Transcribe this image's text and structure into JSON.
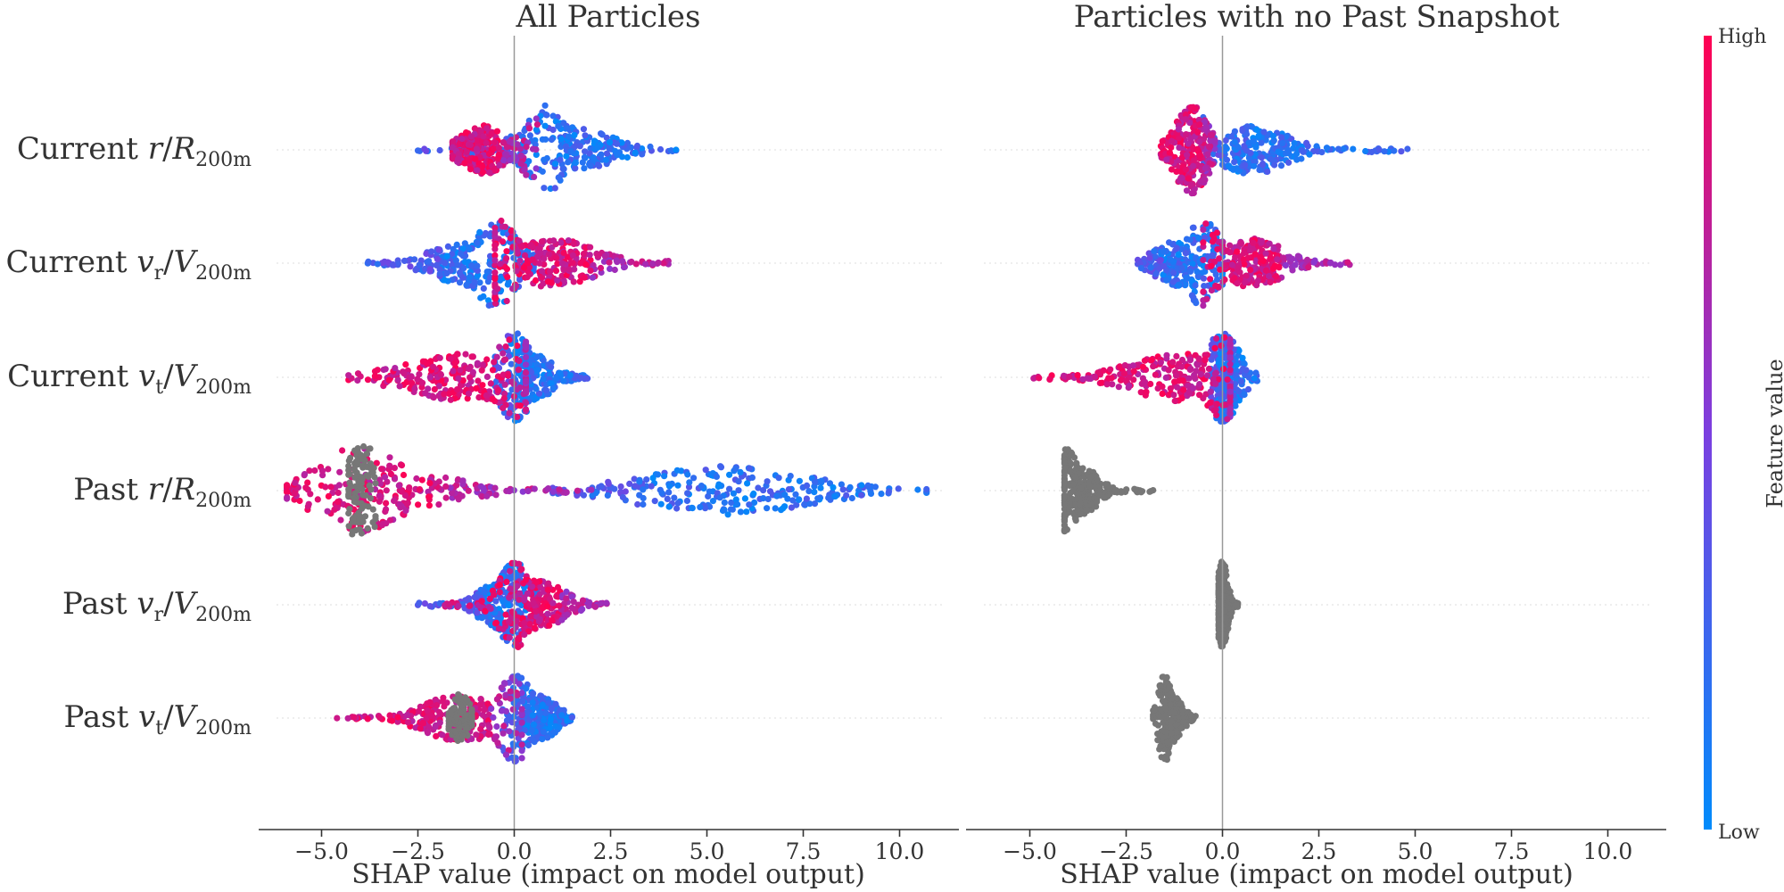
{
  "chart_data": [
    {
      "type": "scatter",
      "subtype": "shap-beeswarm",
      "title": "All Particles",
      "xlabel": "SHAP value (impact on model output)",
      "xlim": [
        -6.6,
        11.6
      ],
      "xticks": [
        -5.0,
        -2.5,
        0.0,
        2.5,
        5.0,
        7.5,
        10.0
      ],
      "xtick_labels": [
        "−5.0",
        "−2.5",
        "0.0",
        "2.5",
        "5.0",
        "7.5",
        "10.0"
      ],
      "features": [
        {
          "label": "Current r/R200m",
          "base": "Current",
          "sym": "r",
          "sub": "",
          "den": "R",
          "dsub": "200m",
          "min": -2.5,
          "max": 4.2,
          "low": {
            "center": 1.2,
            "spread": 1.1,
            "min": -2.5,
            "max": 4.2
          },
          "high": {
            "center": -0.8,
            "spread": 0.5,
            "min": -1.6,
            "max": 0.6
          },
          "nan": null,
          "peak": 0.8
        },
        {
          "label": "Current vr/V200m",
          "base": "Current",
          "sym": "v",
          "sub": "r",
          "den": "V",
          "dsub": "200m",
          "min": -3.8,
          "max": 4.0,
          "low": {
            "center": -1.0,
            "spread": 0.9,
            "min": -3.8,
            "max": 0.5
          },
          "high": {
            "center": 1.0,
            "spread": 1.0,
            "min": -0.5,
            "max": 4.0
          },
          "nan": null,
          "peak": -0.5
        },
        {
          "label": "Current vt/V200m",
          "base": "Current",
          "sym": "v",
          "sub": "t",
          "den": "V",
          "dsub": "200m",
          "min": -4.3,
          "max": 1.9,
          "low": {
            "center": 0.4,
            "spread": 0.5,
            "min": -0.5,
            "max": 1.9
          },
          "high": {
            "center": -1.2,
            "spread": 1.4,
            "min": -4.3,
            "max": 0.3
          },
          "nan": null,
          "peak": 0.0
        },
        {
          "label": "Past r/R200m",
          "base": "Past",
          "sym": "r",
          "sub": "",
          "den": "R",
          "dsub": "200m",
          "min": -5.9,
          "max": 10.7,
          "low": {
            "center": 5.5,
            "spread": 2.0,
            "min": 1.0,
            "max": 10.7
          },
          "high": {
            "center": -3.5,
            "spread": 1.5,
            "min": -5.9,
            "max": 2.0
          },
          "nan": {
            "center": -4.0,
            "spread": 0.2,
            "min": -4.3,
            "max": -3.6
          },
          "peak": -4.0
        },
        {
          "label": "Past vr/V200m",
          "base": "Past",
          "sym": "v",
          "sub": "r",
          "den": "V",
          "dsub": "200m",
          "min": -2.5,
          "max": 2.4,
          "low": {
            "center": -0.3,
            "spread": 0.5,
            "min": -2.5,
            "max": 0.6
          },
          "high": {
            "center": 0.6,
            "spread": 0.6,
            "min": -1.8,
            "max": 2.4
          },
          "nan": null,
          "peak": 0.0
        },
        {
          "label": "Past vt/V200m",
          "base": "Past",
          "sym": "v",
          "sub": "t",
          "den": "V",
          "dsub": "200m",
          "min": -4.6,
          "max": 1.5,
          "low": {
            "center": 0.6,
            "spread": 0.4,
            "min": -0.3,
            "max": 1.5
          },
          "high": {
            "center": -1.4,
            "spread": 0.8,
            "min": -4.6,
            "max": 0.2
          },
          "nan": {
            "center": -1.4,
            "spread": 0.2,
            "min": -1.7,
            "max": -1.1
          },
          "peak": 0.0
        }
      ]
    },
    {
      "type": "scatter",
      "subtype": "shap-beeswarm",
      "title": "Particles with no Past Snapshot",
      "xlabel": "SHAP value (impact on model output)",
      "xlim": [
        -6.6,
        11.6
      ],
      "xticks": [
        -5.0,
        -2.5,
        0.0,
        2.5,
        5.0,
        7.5,
        10.0
      ],
      "xtick_labels": [
        "−5.0",
        "−2.5",
        "0.0",
        "2.5",
        "5.0",
        "7.5",
        "10.0"
      ],
      "features": [
        {
          "label": "Current r/R200m",
          "min": -0.8,
          "max": 4.8,
          "low": {
            "center": 0.8,
            "spread": 0.8,
            "min": -0.5,
            "max": 4.8
          },
          "high": {
            "center": -0.8,
            "spread": 0.3,
            "min": -1.6,
            "max": -0.2
          },
          "nan": null,
          "peak": -0.8
        },
        {
          "label": "Current vr/V200m",
          "min": -2.2,
          "max": 3.3,
          "low": {
            "center": -1.0,
            "spread": 0.6,
            "min": -2.2,
            "max": 0.0
          },
          "high": {
            "center": 0.8,
            "spread": 0.7,
            "min": -0.5,
            "max": 3.3
          },
          "nan": null,
          "peak": -0.5
        },
        {
          "label": "Current vt/V200m",
          "min": -4.9,
          "max": 0.9,
          "low": {
            "center": 0.1,
            "spread": 0.2,
            "min": -0.3,
            "max": 0.9
          },
          "high": {
            "center": -1.0,
            "spread": 1.2,
            "min": -4.9,
            "max": 0.2
          },
          "nan": null,
          "peak": 0.0
        },
        {
          "label": "Past r/R200m",
          "min": -4.1,
          "max": -1.8,
          "low": null,
          "high": null,
          "nan": {
            "center": -3.7,
            "spread": 0.4,
            "min": -4.1,
            "max": -1.8
          },
          "peak": -4.0
        },
        {
          "label": "Past vr/V200m",
          "min": -0.1,
          "max": 0.4,
          "low": null,
          "high": null,
          "nan": {
            "center": 0.0,
            "spread": 0.1,
            "min": -0.1,
            "max": 0.4
          },
          "peak": 0.0
        },
        {
          "label": "Past vt/V200m",
          "min": -1.8,
          "max": -0.7,
          "low": null,
          "high": null,
          "nan": {
            "center": -1.3,
            "spread": 0.2,
            "min": -1.8,
            "max": -0.7
          },
          "peak": -1.5
        }
      ]
    }
  ],
  "colorbar": {
    "label": "Feature value",
    "high_label": "High",
    "low_label": "Low",
    "color_high": "#ff0052",
    "color_mid": "#7b3fe0",
    "color_low": "#008bfb"
  },
  "colors": {
    "missing": "#777777",
    "axis": "#333333",
    "zero_line": "#999999",
    "text": "#333333"
  }
}
